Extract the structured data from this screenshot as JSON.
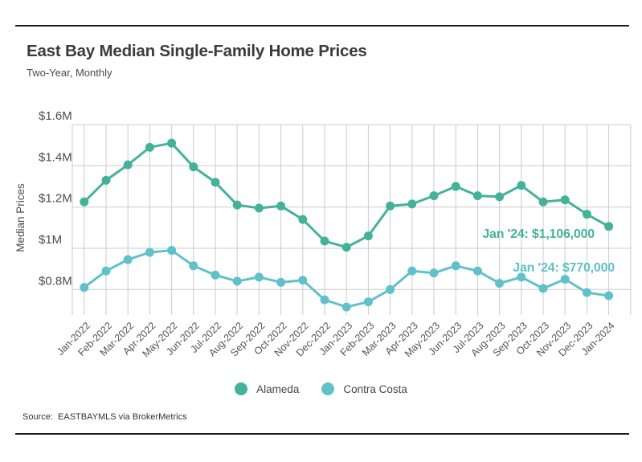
{
  "header": {
    "title": "East Bay Median Single-Family Home Prices",
    "subtitle": "Two-Year, Monthly"
  },
  "chart_data": {
    "type": "line",
    "title": "East Bay Median Single-Family Home Prices",
    "subtitle": "Two-Year, Monthly",
    "xlabel": "",
    "ylabel": "Median Prices",
    "values_unit": "USD thousands",
    "ylim": [
      685,
      1600
    ],
    "grid": true,
    "legend_position": "bottom",
    "categories": [
      "Jan-2022",
      "Feb-2022",
      "Mar-2022",
      "Apr-2022",
      "May-2022",
      "Jun-2022",
      "Jul-2022",
      "Aug-2022",
      "Sep-2022",
      "Oct-2022",
      "Nov-2022",
      "Dec-2022",
      "Jan-2023",
      "Feb-2023",
      "Mar-2023",
      "Apr-2023",
      "May-2023",
      "Jun-2023",
      "Jul-2023",
      "Aug-2023",
      "Sep-2023",
      "Oct-2023",
      "Nov-2023",
      "Dec-2023",
      "Jan-2024"
    ],
    "series": [
      {
        "name": "Alameda",
        "color": "#44b29a",
        "values": [
          1225,
          1330,
          1405,
          1490,
          1510,
          1395,
          1320,
          1210,
          1195,
          1205,
          1140,
          1035,
          1005,
          1060,
          1205,
          1215,
          1255,
          1300,
          1255,
          1250,
          1305,
          1225,
          1235,
          1165,
          1106
        ]
      },
      {
        "name": "Contra Costa",
        "color": "#60c1cb",
        "values": [
          810,
          890,
          945,
          980,
          990,
          915,
          870,
          840,
          860,
          835,
          845,
          750,
          715,
          740,
          800,
          890,
          880,
          915,
          890,
          830,
          860,
          805,
          850,
          785,
          770
        ]
      }
    ],
    "yticks": [
      {
        "label": "$1.6M",
        "value": 1600
      },
      {
        "label": "$1.4M",
        "value": 1400
      },
      {
        "label": "$1.2M",
        "value": 1200
      },
      {
        "label": "$1M",
        "value": 1000
      },
      {
        "label": "$0.8M",
        "value": 800
      }
    ],
    "annotations": [
      {
        "text": "Jan '24: $1,106,000",
        "series": "Alameda",
        "x": "Jan-2024",
        "value": 1106
      },
      {
        "text": "Jan '24: $770,000",
        "series": "Contra Costa",
        "x": "Jan-2024",
        "value": 770
      }
    ]
  },
  "footer": {
    "source": "Source:  EASTBAYMLS via BrokerMetrics"
  },
  "colors": {
    "alameda": "#44b29a",
    "contra_costa": "#60c1cb",
    "gridline": "#cbcbcb",
    "rule": "#1c1c1c",
    "title_text": "#3b3b3b"
  }
}
